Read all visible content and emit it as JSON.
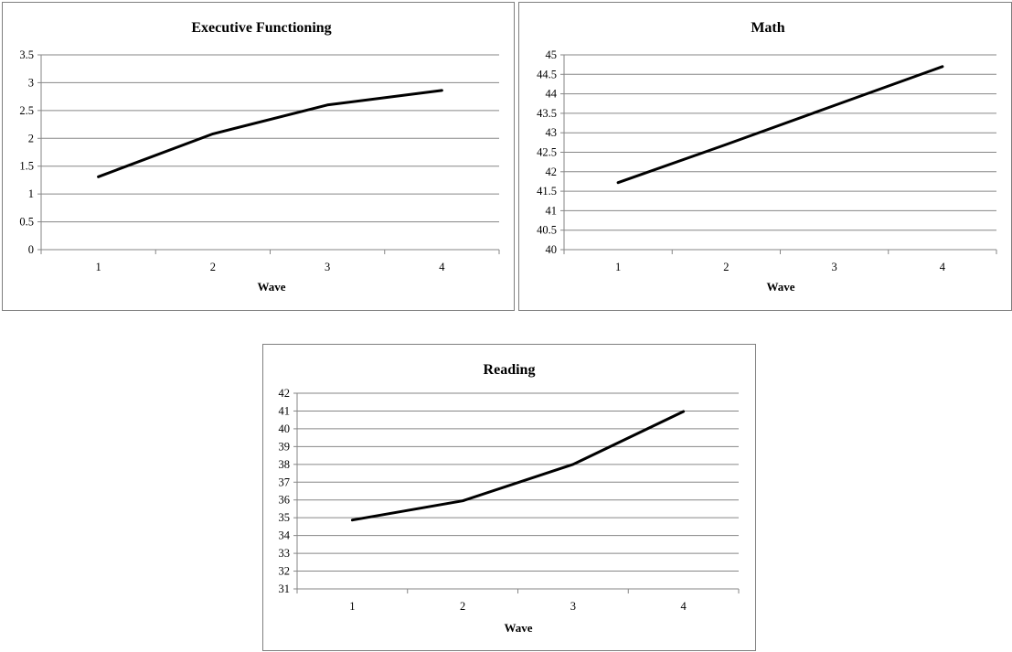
{
  "chart_data": [
    {
      "type": "line",
      "title": "Executive Functioning",
      "xlabel": "Wave",
      "ylabel": "",
      "categories": [
        "1",
        "2",
        "3",
        "4"
      ],
      "yticks": [
        "0",
        "0.5",
        "1",
        "1.5",
        "2",
        "2.5",
        "3",
        "3.5"
      ],
      "ylim": [
        0,
        3.5
      ],
      "grid": true,
      "legend": "none",
      "series": [
        {
          "values": [
            1.31,
            2.08,
            2.6,
            2.86
          ]
        }
      ]
    },
    {
      "type": "line",
      "title": "Math",
      "xlabel": "Wave",
      "ylabel": "",
      "categories": [
        "1",
        "2",
        "3",
        "4"
      ],
      "yticks": [
        "40",
        "40.5",
        "41",
        "41.5",
        "42",
        "42.5",
        "43",
        "43.5",
        "44",
        "44.5",
        "45"
      ],
      "ylim": [
        40,
        45
      ],
      "grid": true,
      "legend": "none",
      "series": [
        {
          "values": [
            41.72,
            42.7,
            43.7,
            44.7
          ]
        }
      ]
    },
    {
      "type": "line",
      "title": "Reading",
      "xlabel": "Wave",
      "ylabel": "",
      "categories": [
        "1",
        "2",
        "3",
        "4"
      ],
      "yticks": [
        "31",
        "32",
        "33",
        "34",
        "35",
        "36",
        "37",
        "38",
        "39",
        "40",
        "41",
        "42"
      ],
      "ylim": [
        31,
        42
      ],
      "grid": true,
      "legend": "none",
      "series": [
        {
          "values": [
            34.87,
            35.95,
            38.0,
            40.97
          ]
        }
      ]
    }
  ]
}
